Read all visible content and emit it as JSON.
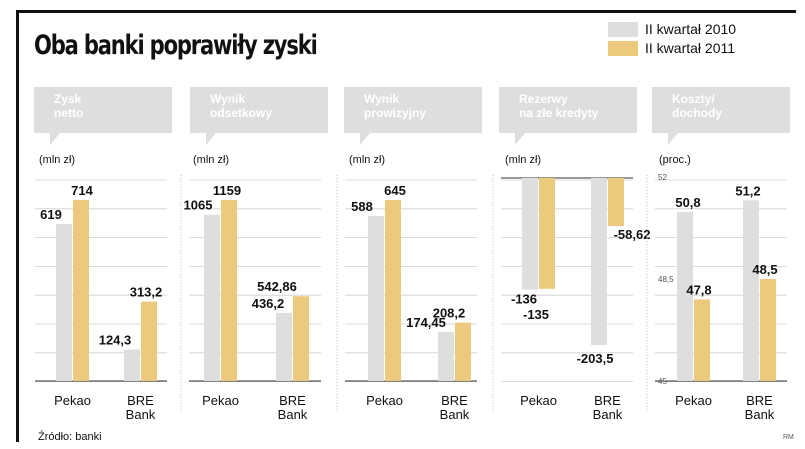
{
  "title": "Oba banki poprawiły zyski",
  "source": "Źródło: banki",
  "initials": "RM",
  "legend": [
    {
      "label": "II kwartał 2010",
      "color": "#dedede"
    },
    {
      "label": "II kwartał 2011",
      "color": "#ecc97d"
    }
  ],
  "chart_data": [
    {
      "type": "bar",
      "title": "Zysk netto",
      "unit": "(mln zł)",
      "categories": [
        "Pekao",
        "BRE Bank"
      ],
      "ylim": [
        0,
        714
      ],
      "series": [
        {
          "name": "II kwartał 2010",
          "values": [
            619,
            124.3
          ],
          "labels": [
            "619",
            "124,3"
          ]
        },
        {
          "name": "II kwartał 2011",
          "values": [
            714,
            313.2
          ],
          "labels": [
            "714",
            "313,2"
          ]
        }
      ]
    },
    {
      "type": "bar",
      "title": "Wynik odsetkowy",
      "unit": "(mln zł)",
      "categories": [
        "Pekao",
        "BRE Bank"
      ],
      "ylim": [
        0,
        1159
      ],
      "series": [
        {
          "name": "II kwartał 2010",
          "values": [
            1065,
            436.2
          ],
          "labels": [
            "1065",
            "436,2"
          ]
        },
        {
          "name": "II kwartał 2011",
          "values": [
            1159,
            542.86
          ],
          "labels": [
            "1159",
            "542,86"
          ]
        }
      ]
    },
    {
      "type": "bar",
      "title": "Wynik prowizyjny",
      "unit": "(mln zł)",
      "categories": [
        "Pekao",
        "BRE Bank"
      ],
      "ylim": [
        0,
        645
      ],
      "series": [
        {
          "name": "II kwartał 2010",
          "values": [
            588,
            174.45
          ],
          "labels": [
            "588",
            "174,45"
          ]
        },
        {
          "name": "II kwartał 2011",
          "values": [
            645,
            208.2
          ],
          "labels": [
            "645",
            "208,2"
          ]
        }
      ]
    },
    {
      "type": "bar",
      "title": "Rezerwy na złe kredyty",
      "unit": "(mln zł)",
      "categories": [
        "Pekao",
        "BRE Bank"
      ],
      "ylim": [
        -203.5,
        0
      ],
      "series": [
        {
          "name": "II kwartał 2010",
          "values": [
            -136,
            -203.5
          ],
          "labels": [
            "-136",
            "-203,5"
          ]
        },
        {
          "name": "II kwartał 2011",
          "values": [
            -135,
            -58.62
          ],
          "labels": [
            "-135",
            "-58,62"
          ]
        }
      ]
    },
    {
      "type": "bar",
      "title": "Koszty/ dochody",
      "unit": "(proc.)",
      "categories": [
        "Pekao",
        "BRE Bank"
      ],
      "ylim": [
        45,
        52
      ],
      "yticks": [
        "52",
        "48,5",
        "45"
      ],
      "series": [
        {
          "name": "II kwartał 2010",
          "values": [
            50.8,
            51.2
          ],
          "labels": [
            "50,8",
            "51,2"
          ]
        },
        {
          "name": "II kwartał 2011",
          "values": [
            47.8,
            48.5
          ],
          "labels": [
            "47,8",
            "48,5"
          ]
        }
      ]
    }
  ]
}
